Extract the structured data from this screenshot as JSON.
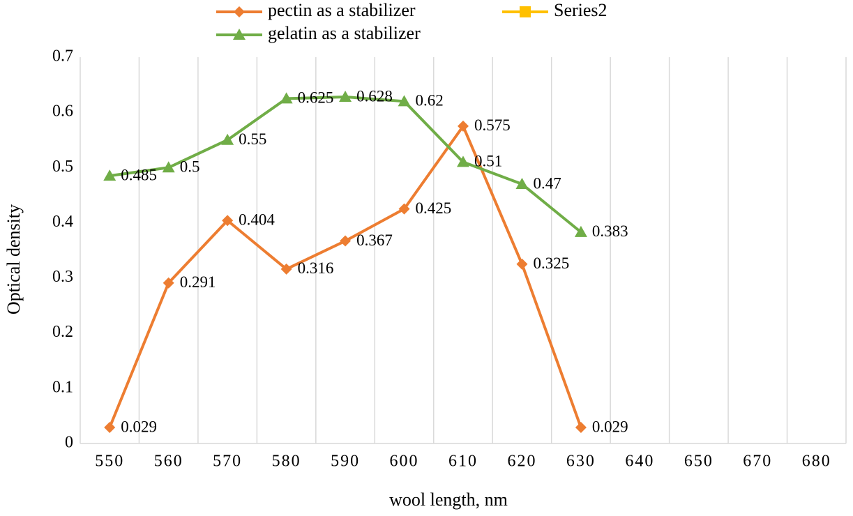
{
  "chart_data": {
    "type": "line",
    "x_label": "wool length, nm",
    "y_label": "Optical density",
    "categories": [
      "550",
      "560",
      "570",
      "580",
      "590",
      "600",
      "610",
      "620",
      "630",
      "640",
      "650",
      "670",
      "680"
    ],
    "series": [
      {
        "name": "pectin as a stabilizer",
        "color": "#ed7d31",
        "marker": "diamond",
        "values": [
          0.029,
          0.291,
          0.404,
          0.316,
          0.367,
          0.425,
          0.575,
          0.325,
          0.029,
          null,
          null,
          null,
          null
        ]
      },
      {
        "name": "Series2",
        "color": "#ffc000",
        "marker": "square",
        "values": [
          null,
          null,
          null,
          null,
          null,
          null,
          null,
          null,
          null,
          null,
          null,
          null,
          null
        ]
      },
      {
        "name": "gelatin as a stabilizer",
        "color": "#70ad47",
        "marker": "triangle",
        "values": [
          0.485,
          0.5,
          0.55,
          0.625,
          0.628,
          0.62,
          0.51,
          0.47,
          0.383,
          null,
          null,
          null,
          null
        ]
      }
    ],
    "ylim": [
      0,
      0.7
    ],
    "yticks": [
      0,
      0.1,
      0.2,
      0.3,
      0.4,
      0.5,
      0.6,
      0.7
    ],
    "grid": "x",
    "data_labels": true,
    "legend": "top"
  }
}
